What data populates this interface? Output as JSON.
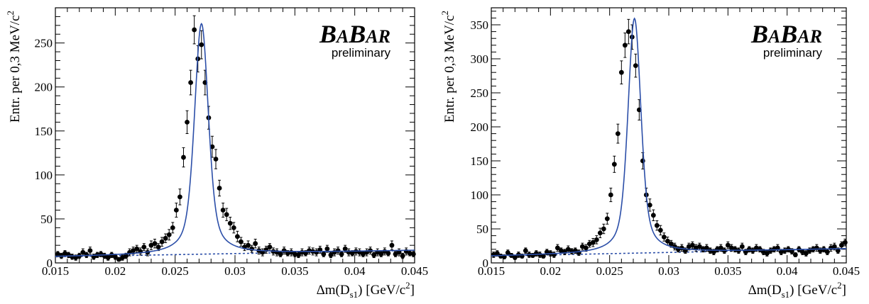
{
  "chart_data": [
    {
      "type": "scatter",
      "xlabel_prefix": "Δm(D",
      "xlabel_sub": "s1",
      "xlabel_suffix": ") [GeV/c",
      "xlabel_sup": "2",
      "xlabel_end": "]",
      "ylabel_main": "Entr. per 0,3 MeV/c",
      "ylabel_sup": "2",
      "logo_b1": "B",
      "logo_a1": "A",
      "logo_b2": "B",
      "logo_ar": "AR",
      "annotation": "preliminary",
      "xlim": [
        0.015,
        0.045
      ],
      "ylim": [
        0,
        290
      ],
      "xticks": [
        "0.015",
        "0.02",
        "0.025",
        "0.03",
        "0.035",
        "0.04",
        "0.045"
      ],
      "yticks": [
        "0",
        "50",
        "100",
        "150",
        "200",
        "250"
      ],
      "ytick_values": [
        0,
        50,
        100,
        150,
        200,
        250
      ],
      "series": [
        {
          "x": [
            0.0152,
            0.0155,
            0.0158,
            0.0161,
            0.0164,
            0.0167,
            0.017,
            0.0173,
            0.0176,
            0.0179,
            0.0182,
            0.0185,
            0.0188,
            0.0191,
            0.0194,
            0.0197,
            0.02,
            0.0203,
            0.0206,
            0.0209,
            0.0212,
            0.0215,
            0.0218,
            0.0221,
            0.0224,
            0.0227,
            0.023,
            0.0233,
            0.0236,
            0.0239,
            0.0242,
            0.0245,
            0.0248,
            0.0251,
            0.0254,
            0.0257,
            0.026,
            0.0263,
            0.0266,
            0.0269,
            0.0272,
            0.0275,
            0.0278,
            0.0281,
            0.0284,
            0.0287,
            0.029,
            0.0293,
            0.0296,
            0.0299,
            0.0302,
            0.0305,
            0.0308,
            0.0311,
            0.0314,
            0.0317,
            0.032,
            0.0323,
            0.0326,
            0.0329,
            0.0332,
            0.0335,
            0.0338,
            0.0341,
            0.0344,
            0.0347,
            0.035,
            0.0353,
            0.0356,
            0.0359,
            0.0362,
            0.0365,
            0.0368,
            0.0371,
            0.0374,
            0.0377,
            0.038,
            0.0383,
            0.0386,
            0.0389,
            0.0392,
            0.0395,
            0.0398,
            0.0401,
            0.0404,
            0.0407,
            0.041,
            0.0413,
            0.0416,
            0.0419,
            0.0422,
            0.0425,
            0.0428,
            0.0431,
            0.0434,
            0.0437,
            0.044,
            0.0443,
            0.0446,
            0.0449
          ],
          "y": [
            10,
            8,
            11,
            9,
            7,
            6,
            8,
            12,
            9,
            14,
            7,
            9,
            10,
            8,
            6,
            9,
            7,
            4,
            6,
            8,
            12,
            14,
            16,
            13,
            18,
            12,
            20,
            22,
            18,
            24,
            28,
            32,
            40,
            60,
            75,
            120,
            160,
            205,
            265,
            232,
            248,
            205,
            165,
            132,
            118,
            85,
            60,
            55,
            45,
            40,
            30,
            24,
            18,
            20,
            16,
            22,
            14,
            12,
            15,
            18,
            13,
            12,
            10,
            14,
            11,
            12,
            10,
            9,
            12,
            11,
            14,
            13,
            12,
            15,
            10,
            16,
            9,
            12,
            14,
            10,
            16,
            12,
            11,
            13,
            12,
            10,
            12,
            14,
            9,
            12,
            10,
            13,
            11,
            20,
            10,
            12,
            8,
            13,
            11,
            10
          ],
          "err": [
            3,
            3,
            3,
            3,
            3,
            3,
            3,
            4,
            3,
            4,
            3,
            3,
            3,
            3,
            3,
            3,
            3,
            2,
            3,
            3,
            4,
            4,
            4,
            4,
            4,
            4,
            5,
            5,
            4,
            5,
            5,
            6,
            6,
            8,
            9,
            11,
            13,
            14,
            16,
            15,
            16,
            14,
            13,
            12,
            11,
            9,
            8,
            7,
            7,
            6,
            6,
            5,
            4,
            5,
            4,
            5,
            4,
            4,
            4,
            4,
            4,
            4,
            3,
            4,
            3,
            4,
            3,
            3,
            4,
            3,
            4,
            4,
            4,
            4,
            3,
            4,
            3,
            4,
            4,
            3,
            4,
            4,
            3,
            4,
            4,
            3,
            4,
            4,
            3,
            4,
            3,
            4,
            3,
            5,
            3,
            4,
            3,
            4,
            3,
            3
          ],
          "peak": {
            "mean": 0.0272,
            "amp": 262,
            "sigma": 0.00055,
            "gamma": 0.0008
          },
          "background": {
            "a": 7,
            "b": 12
          }
        }
      ]
    },
    {
      "type": "scatter",
      "xlabel_prefix": "Δm(D",
      "xlabel_sub": "s1",
      "xlabel_suffix": ") [GeV/c",
      "xlabel_sup": "2",
      "xlabel_end": "]",
      "ylabel_main": "Entr. per 0,3 MeV/c",
      "ylabel_sup": "2",
      "logo_b1": "B",
      "logo_a1": "A",
      "logo_b2": "B",
      "logo_ar": "AR",
      "annotation": "preliminary",
      "xlim": [
        0.015,
        0.045
      ],
      "ylim": [
        0,
        375
      ],
      "xticks": [
        "0.015",
        "0.02",
        "0.025",
        "0.03",
        "0.035",
        "0.04",
        "0.045"
      ],
      "yticks": [
        "0",
        "50",
        "100",
        "150",
        "200",
        "250",
        "300",
        "350"
      ],
      "ytick_values": [
        0,
        50,
        100,
        150,
        200,
        250,
        300,
        350
      ],
      "series": [
        {
          "x": [
            0.0152,
            0.0155,
            0.0158,
            0.0161,
            0.0164,
            0.0167,
            0.017,
            0.0173,
            0.0176,
            0.0179,
            0.0182,
            0.0185,
            0.0188,
            0.0191,
            0.0194,
            0.0197,
            0.02,
            0.0203,
            0.0206,
            0.0209,
            0.0212,
            0.0215,
            0.0218,
            0.0221,
            0.0224,
            0.0227,
            0.023,
            0.0233,
            0.0236,
            0.0239,
            0.0242,
            0.0245,
            0.0248,
            0.0251,
            0.0254,
            0.0257,
            0.026,
            0.0263,
            0.0266,
            0.0269,
            0.0272,
            0.0275,
            0.0278,
            0.0281,
            0.0284,
            0.0287,
            0.029,
            0.0293,
            0.0296,
            0.0299,
            0.0302,
            0.0305,
            0.0308,
            0.0311,
            0.0314,
            0.0317,
            0.032,
            0.0323,
            0.0326,
            0.0329,
            0.0332,
            0.0335,
            0.0338,
            0.0341,
            0.0344,
            0.0347,
            0.035,
            0.0353,
            0.0356,
            0.0359,
            0.0362,
            0.0365,
            0.0368,
            0.0371,
            0.0374,
            0.0377,
            0.038,
            0.0383,
            0.0386,
            0.0389,
            0.0392,
            0.0395,
            0.0398,
            0.0401,
            0.0404,
            0.0407,
            0.041,
            0.0413,
            0.0416,
            0.0419,
            0.0422,
            0.0425,
            0.0428,
            0.0431,
            0.0434,
            0.0437,
            0.044,
            0.0443,
            0.0446,
            0.0449
          ],
          "y": [
            12,
            14,
            10,
            9,
            15,
            11,
            8,
            12,
            10,
            18,
            12,
            11,
            14,
            12,
            10,
            16,
            14,
            12,
            22,
            18,
            16,
            20,
            17,
            18,
            15,
            24,
            22,
            28,
            30,
            34,
            44,
            50,
            65,
            100,
            145,
            190,
            280,
            320,
            340,
            332,
            290,
            225,
            150,
            100,
            85,
            70,
            55,
            48,
            38,
            32,
            28,
            24,
            20,
            22,
            18,
            24,
            26,
            22,
            24,
            20,
            22,
            18,
            16,
            20,
            22,
            18,
            26,
            22,
            20,
            18,
            24,
            16,
            20,
            18,
            22,
            20,
            16,
            14,
            18,
            20,
            22,
            16,
            18,
            20,
            17,
            12,
            20,
            16,
            14,
            18,
            20,
            22,
            18,
            20,
            16,
            22,
            24,
            18,
            26,
            30
          ],
          "err": [
            4,
            4,
            3,
            3,
            4,
            3,
            3,
            4,
            3,
            4,
            4,
            3,
            4,
            4,
            3,
            4,
            4,
            4,
            5,
            4,
            4,
            5,
            4,
            4,
            4,
            5,
            5,
            5,
            6,
            6,
            7,
            7,
            8,
            10,
            12,
            14,
            17,
            18,
            18,
            18,
            17,
            15,
            12,
            10,
            9,
            8,
            7,
            7,
            6,
            6,
            5,
            5,
            4,
            5,
            4,
            5,
            5,
            5,
            5,
            4,
            5,
            4,
            4,
            4,
            5,
            4,
            5,
            5,
            4,
            4,
            5,
            4,
            4,
            4,
            5,
            4,
            4,
            4,
            4,
            4,
            5,
            4,
            4,
            4,
            4,
            3,
            4,
            4,
            4,
            4,
            4,
            5,
            4,
            4,
            4,
            5,
            5,
            4,
            5,
            5
          ],
          "peak": {
            "mean": 0.0271,
            "amp": 345,
            "sigma": 0.00052,
            "gamma": 0.00075
          },
          "background": {
            "a": 10,
            "b": 18
          }
        }
      ]
    }
  ]
}
